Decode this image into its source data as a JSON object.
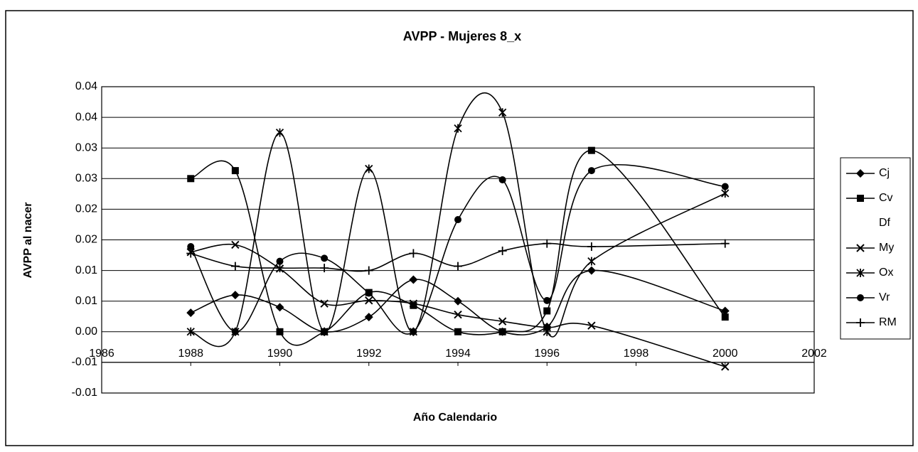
{
  "chart_data": {
    "type": "line",
    "title": "AVPP - Mujeres 8_x",
    "x_label": "Año Calendario",
    "y_label": "AVPP al nacer",
    "x": [
      1988,
      1989,
      1990,
      1991,
      1992,
      1993,
      1994,
      1995,
      1996,
      1997,
      2000
    ],
    "xlim": [
      1986,
      2002
    ],
    "xticks": [
      1986,
      1988,
      1990,
      1992,
      1994,
      1996,
      1998,
      2000,
      2002
    ],
    "ylim": [
      -0.01,
      0.04
    ],
    "yticks": [
      {
        "value": -0.01,
        "label": "-0.01"
      },
      {
        "value": -0.005,
        "label": "-0.01"
      },
      {
        "value": 0,
        "label": "0.00"
      },
      {
        "value": 0.005,
        "label": "0.01"
      },
      {
        "value": 0.01,
        "label": "0.01"
      },
      {
        "value": 0.015,
        "label": "0.02"
      },
      {
        "value": 0.02,
        "label": "0.02"
      },
      {
        "value": 0.025,
        "label": "0.03"
      },
      {
        "value": 0.03,
        "label": "0.03"
      },
      {
        "value": 0.035,
        "label": "0.04"
      },
      {
        "value": 0.04,
        "label": "0.04"
      }
    ],
    "x_axis_at": -0.005,
    "grid": true,
    "smooth": true,
    "legend": "right",
    "series": [
      {
        "name": "Cj",
        "color": "#000000",
        "marker": "diamond",
        "values": [
          0.0031,
          0.006,
          0.004,
          0,
          0.0024,
          0.0085,
          0.005,
          0,
          0.0008,
          0.01,
          0.0034
        ]
      },
      {
        "name": "Cv",
        "color": "#000000",
        "marker": "square",
        "values": [
          0.025,
          0.0263,
          0,
          0,
          0.0064,
          0.0043,
          0,
          0,
          0.0034,
          0.0296,
          0.0024
        ]
      },
      {
        "name": "Df",
        "color": "#000000",
        "marker": "none",
        "values": [
          null,
          null,
          null,
          null,
          null,
          null,
          null,
          null,
          null,
          null,
          null
        ]
      },
      {
        "name": "My",
        "color": "#000000",
        "marker": "x",
        "values": [
          0.013,
          0.0142,
          0.0103,
          0.0046,
          0.0051,
          0.0046,
          0.0028,
          0.0017,
          0.0007,
          0.001,
          -0.0057
        ]
      },
      {
        "name": "Ox",
        "color": "#000000",
        "marker": "asterisk",
        "values": [
          0,
          0,
          0.0325,
          0,
          0.0266,
          0,
          0.0332,
          0.0358,
          0,
          0.0115,
          0.0226
        ]
      },
      {
        "name": "Vr",
        "color": "#000000",
        "marker": "circle",
        "values": [
          0.0139,
          0,
          0.0115,
          0.012,
          0.0063,
          0,
          0.0183,
          0.0248,
          0.0051,
          0.0263,
          0.0237
        ]
      },
      {
        "name": "RM",
        "color": "#000000",
        "marker": "plus",
        "values": [
          0.0128,
          0.0107,
          0.0104,
          0.0104,
          0.01,
          0.0128,
          0.0107,
          0.0132,
          0.0144,
          0.0139,
          0.0144
        ]
      }
    ]
  }
}
